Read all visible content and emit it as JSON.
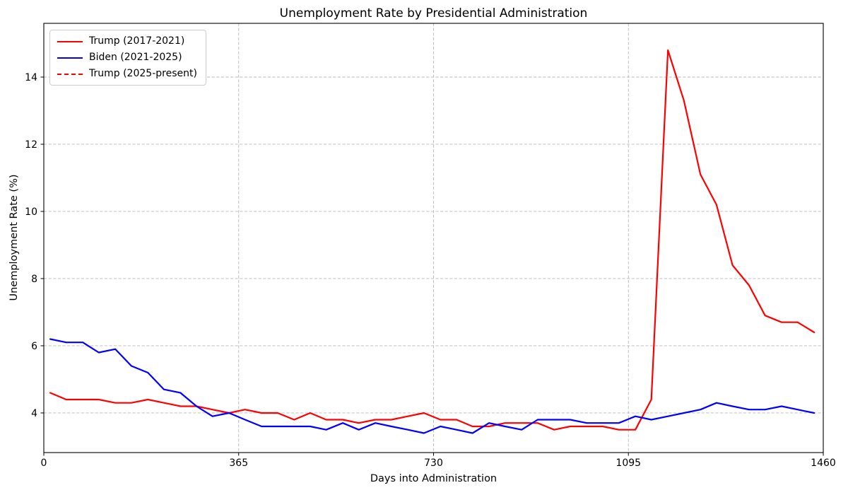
{
  "chart_data": {
    "type": "line",
    "title": "Unemployment Rate by Presidential Administration",
    "xlabel": "Days into Administration",
    "ylabel": "Unemployment Rate (%)",
    "x_ticks": [
      0,
      365,
      730,
      1095,
      1460
    ],
    "y_ticks": [
      4,
      6,
      8,
      10,
      12,
      14
    ],
    "xlim": [
      0,
      1460
    ],
    "ylim": [
      2.82,
      15.6
    ],
    "grid": true,
    "grid_color": "#b8b8b8",
    "legend_position": "upper left",
    "x_days": [
      12,
      42,
      73,
      103,
      134,
      164,
      195,
      225,
      256,
      286,
      316,
      347,
      377,
      408,
      438,
      469,
      499,
      529,
      560,
      590,
      621,
      651,
      682,
      712,
      743,
      773,
      803,
      834,
      864,
      895,
      925,
      956,
      986,
      1017,
      1047,
      1077,
      1108,
      1138,
      1169,
      1199,
      1230,
      1260,
      1290,
      1321,
      1351,
      1382,
      1412,
      1443
    ],
    "series": [
      {
        "name": "Trump (2017-2021)",
        "color": "#ff0000",
        "style": "solid",
        "values": [
          4.6,
          4.4,
          4.4,
          4.4,
          4.3,
          4.3,
          4.4,
          4.3,
          4.2,
          4.2,
          4.1,
          4.0,
          4.1,
          4.0,
          4.0,
          3.8,
          4.0,
          3.8,
          3.8,
          3.7,
          3.8,
          3.8,
          3.9,
          4.0,
          3.8,
          3.8,
          3.6,
          3.6,
          3.7,
          3.7,
          3.7,
          3.5,
          3.6,
          3.6,
          3.6,
          3.5,
          3.5,
          4.4,
          14.8,
          13.3,
          11.1,
          10.2,
          8.4,
          7.8,
          6.9,
          6.7,
          6.7,
          6.4
        ]
      },
      {
        "name": "Biden (2021-2025)",
        "color": "#0000ff",
        "style": "solid",
        "values": [
          6.2,
          6.1,
          6.1,
          5.8,
          5.9,
          5.4,
          5.2,
          4.7,
          4.6,
          4.2,
          3.9,
          4.0,
          3.8,
          3.6,
          3.6,
          3.6,
          3.6,
          3.5,
          3.7,
          3.5,
          3.7,
          3.6,
          3.5,
          3.4,
          3.6,
          3.5,
          3.4,
          3.7,
          3.6,
          3.5,
          3.8,
          3.8,
          3.8,
          3.7,
          3.7,
          3.7,
          3.9,
          3.8,
          3.9,
          4.0,
          4.1,
          4.3,
          4.2,
          4.1,
          4.1,
          4.2,
          4.1,
          4.0
        ]
      },
      {
        "name": "Trump (2025-present)",
        "color": "#ff0000",
        "style": "dashed",
        "values": []
      }
    ]
  }
}
